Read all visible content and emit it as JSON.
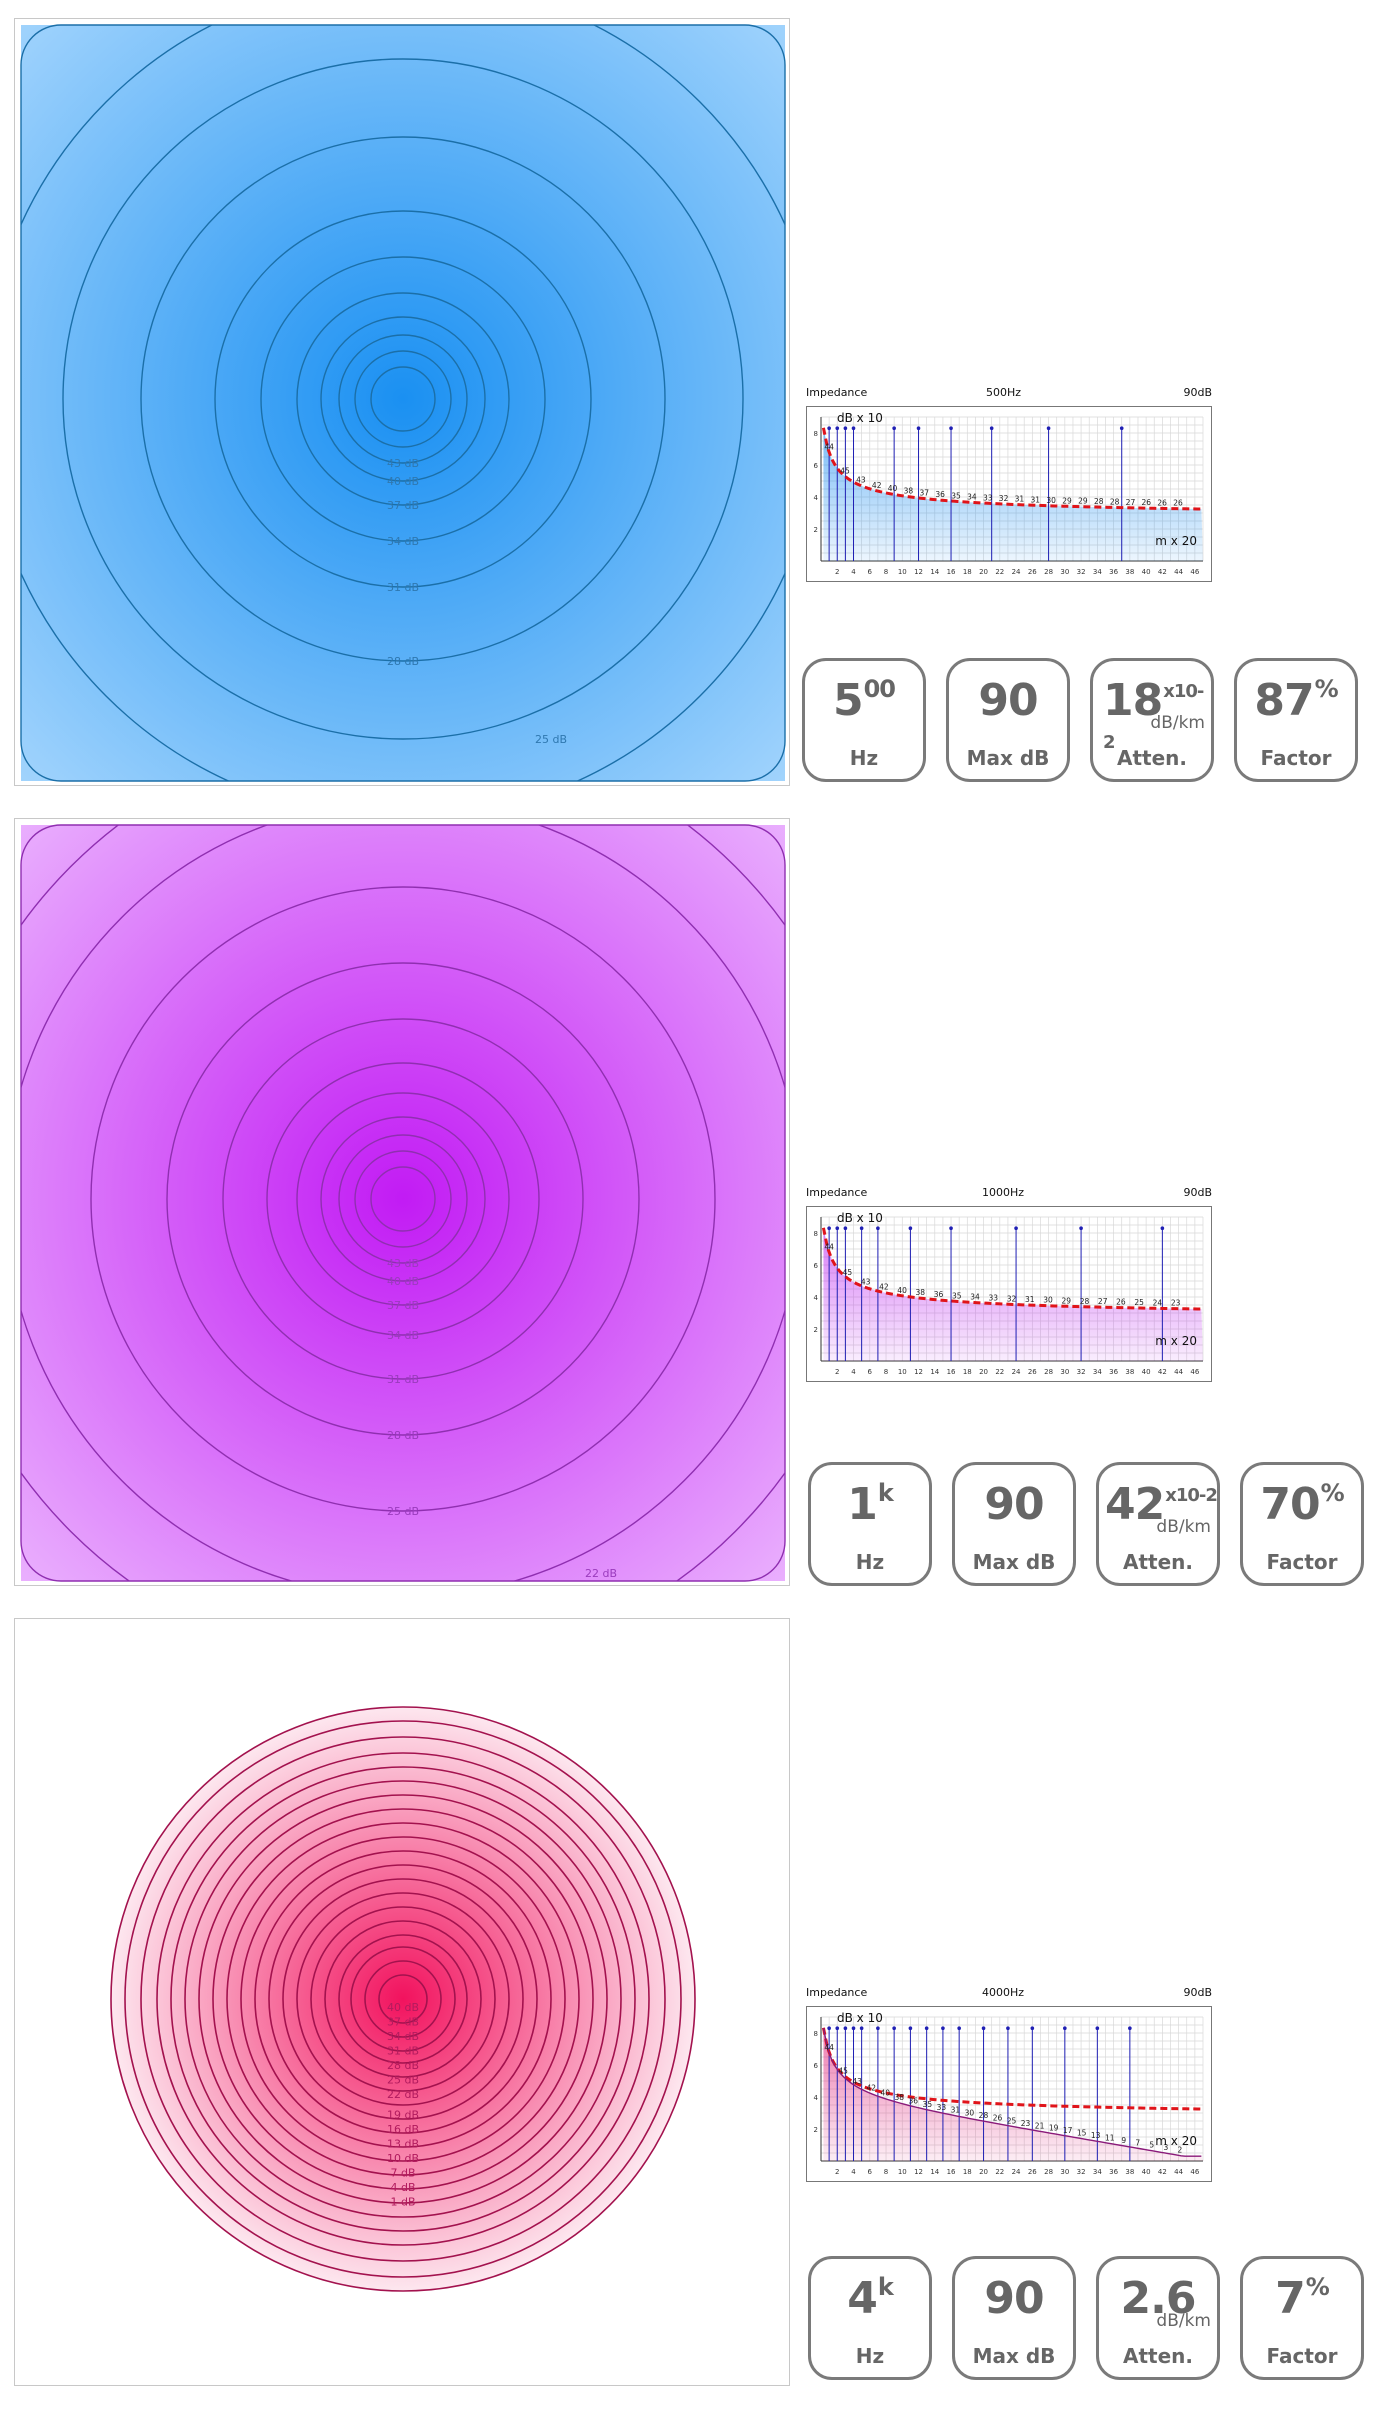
{
  "chart_data": [
    {
      "type": "contour",
      "theme": "blue",
      "colors": {
        "center": "#1a90f2",
        "edge": "#a6d6fd",
        "line": "#1b6fa8",
        "label": "#2f78b0"
      },
      "contour_labels": [
        "43 dB",
        "40 dB",
        "37 dB",
        "34 dB",
        "31 dB",
        "28 dB",
        "25 dB"
      ],
      "impedance": {
        "title": "Impedance",
        "frequency": "500Hz",
        "max": "90dB",
        "ylabel": "dB x 10",
        "xlabel": "m x 20",
        "y_ticks": [
          "2",
          "4",
          "6",
          "8"
        ],
        "x_ticks": [
          "2",
          "4",
          "6",
          "8",
          "10",
          "12",
          "14",
          "16",
          "18",
          "20",
          "22",
          "24",
          "26",
          "28",
          "30",
          "32",
          "34",
          "36",
          "38",
          "40",
          "42",
          "44",
          "46"
        ],
        "y_range": [
          0,
          9
        ],
        "x_range": [
          0,
          47
        ],
        "curve_labels": [
          "44",
          "45",
          "43",
          "42",
          "40",
          "38",
          "37",
          "36",
          "35",
          "34",
          "33",
          "32",
          "31",
          "31",
          "30",
          "29",
          "29",
          "28",
          "28",
          "27",
          "26",
          "26",
          "26"
        ],
        "reference_curve_end": 2.6,
        "pulse_positions": [
          1,
          2,
          3,
          4,
          9,
          12,
          16,
          21,
          28,
          37
        ],
        "area_color": "#1a8cf0"
      },
      "badges": [
        {
          "value": "5",
          "sup": "00",
          "sub": "",
          "caption": "Hz"
        },
        {
          "value": "90",
          "sup": "",
          "sub": "",
          "caption": "Max dB"
        },
        {
          "value": "18",
          "sup": "x10-2",
          "sub": "dB/km",
          "caption": "Atten."
        },
        {
          "value": "87",
          "sup": "%",
          "sub": "",
          "caption": "Factor"
        }
      ]
    },
    {
      "type": "contour",
      "theme": "purple",
      "colors": {
        "center": "#c21bf4",
        "edge": "#ebb5fe",
        "line": "#8f2fb0",
        "label": "#9a3bbd"
      },
      "contour_labels": [
        "43 dB",
        "40 dB",
        "37 dB",
        "34 dB",
        "31 dB",
        "28 dB",
        "25 dB",
        "22 dB"
      ],
      "impedance": {
        "title": "Impedance",
        "frequency": "1000Hz",
        "max": "90dB",
        "ylabel": "dB x 10",
        "xlabel": "m x 20",
        "y_ticks": [
          "2",
          "4",
          "6",
          "8"
        ],
        "x_ticks": [
          "2",
          "4",
          "6",
          "8",
          "10",
          "12",
          "14",
          "16",
          "18",
          "20",
          "22",
          "24",
          "26",
          "28",
          "30",
          "32",
          "34",
          "36",
          "38",
          "40",
          "42",
          "44",
          "46"
        ],
        "y_range": [
          0,
          9
        ],
        "x_range": [
          0,
          47
        ],
        "curve_labels": [
          "44",
          "45",
          "43",
          "42",
          "40",
          "38",
          "36",
          "35",
          "34",
          "33",
          "32",
          "31",
          "30",
          "29",
          "28",
          "27",
          "26",
          "25",
          "24",
          "23"
        ],
        "reference_curve_end": 2.6,
        "pulse_positions": [
          1,
          2,
          3,
          5,
          7,
          11,
          16,
          24,
          32,
          42
        ],
        "area_color": "#bb22f0"
      },
      "badges": [
        {
          "value": "1",
          "sup": "k",
          "sub": "",
          "caption": "Hz"
        },
        {
          "value": "90",
          "sup": "",
          "sub": "",
          "caption": "Max dB"
        },
        {
          "value": "42",
          "sup": "x10-2",
          "sub": "dB/km",
          "caption": "Atten."
        },
        {
          "value": "70",
          "sup": "%",
          "sub": "",
          "caption": "Factor"
        }
      ]
    },
    {
      "type": "contour",
      "theme": "pink",
      "colors": {
        "center": "#f2125e",
        "edge": "#fde7ef",
        "line": "#a3124e",
        "label": "#b21b5e"
      },
      "contour_labels": [
        "40 dB",
        "37 dB",
        "34 dB",
        "31 dB",
        "28 dB",
        "25 dB",
        "22 dB",
        "19 dB",
        "16 dB",
        "13 dB",
        "10 dB",
        "7 dB",
        "4 dB",
        "1 dB"
      ],
      "impedance": {
        "title": "Impedance",
        "frequency": "4000Hz",
        "max": "90dB",
        "ylabel": "dB x 10",
        "xlabel": "m x 20",
        "y_ticks": [
          "2",
          "4",
          "6",
          "8"
        ],
        "x_ticks": [
          "2",
          "4",
          "6",
          "8",
          "10",
          "12",
          "14",
          "16",
          "18",
          "20",
          "22",
          "24",
          "26",
          "28",
          "30",
          "32",
          "34",
          "36",
          "38",
          "40",
          "42",
          "44",
          "46"
        ],
        "y_range": [
          0,
          9
        ],
        "x_range": [
          0,
          47
        ],
        "curve_labels": [
          "44",
          "45",
          "43",
          "42",
          "40",
          "38",
          "36",
          "35",
          "33",
          "31",
          "30",
          "28",
          "26",
          "25",
          "23",
          "21",
          "19",
          "17",
          "15",
          "13",
          "11",
          "9",
          "7",
          "5",
          "3",
          "2"
        ],
        "reference_curve_end": 2.6,
        "pulse_positions": [
          1,
          2,
          3,
          4,
          5,
          7,
          9,
          11,
          13,
          15,
          17,
          20,
          23,
          26,
          30,
          34,
          38
        ],
        "area_color": "#e0227a"
      },
      "badges": [
        {
          "value": "4",
          "sup": "k",
          "sub": "",
          "caption": "Hz"
        },
        {
          "value": "90",
          "sup": "",
          "sub": "",
          "caption": "Max dB"
        },
        {
          "value": "2.6",
          "sup": "",
          "sub": "dB/km",
          "caption": "Atten."
        },
        {
          "value": "7",
          "sup": "%",
          "sub": "",
          "caption": "Factor"
        }
      ]
    }
  ]
}
